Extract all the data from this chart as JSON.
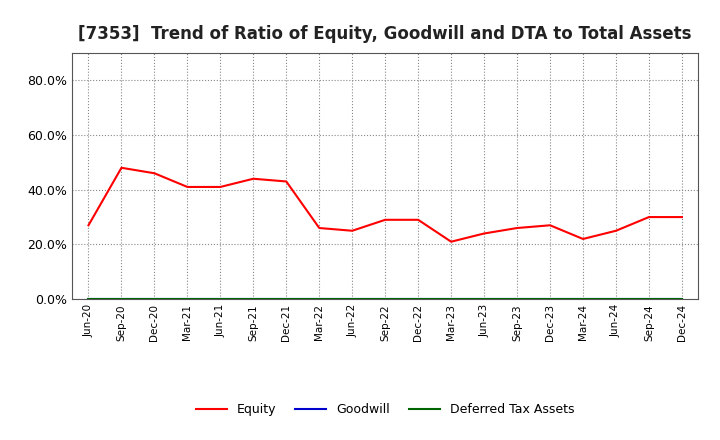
{
  "title": "[7353]  Trend of Ratio of Equity, Goodwill and DTA to Total Assets",
  "x_labels": [
    "Jun-20",
    "Sep-20",
    "Dec-20",
    "Mar-21",
    "Jun-21",
    "Sep-21",
    "Dec-21",
    "Mar-22",
    "Jun-22",
    "Sep-22",
    "Dec-22",
    "Mar-23",
    "Jun-23",
    "Sep-23",
    "Dec-23",
    "Mar-24",
    "Jun-24",
    "Sep-24",
    "Dec-24"
  ],
  "equity": [
    0.27,
    0.48,
    0.46,
    0.41,
    0.41,
    0.44,
    0.43,
    0.26,
    0.25,
    0.29,
    0.29,
    0.21,
    0.24,
    0.26,
    0.27,
    0.22,
    0.25,
    0.3,
    0.3
  ],
  "goodwill": [
    0.0,
    0.0,
    0.0,
    0.0,
    0.0,
    0.0,
    0.0,
    0.0,
    0.0,
    0.0,
    0.0,
    0.0,
    0.0,
    0.0,
    0.0,
    0.0,
    0.0,
    0.0,
    0.0
  ],
  "dta": [
    0.0,
    0.0,
    0.0,
    0.0,
    0.0,
    0.0,
    0.0,
    0.0,
    0.0,
    0.0,
    0.0,
    0.0,
    0.0,
    0.0,
    0.0,
    0.0,
    0.0,
    0.0,
    0.0
  ],
  "equity_color": "#FF0000",
  "goodwill_color": "#0000CC",
  "dta_color": "#006600",
  "ylim": [
    0.0,
    0.9
  ],
  "yticks": [
    0.0,
    0.2,
    0.4,
    0.6,
    0.8
  ],
  "grid_color": "#888888",
  "bg_color": "#ffffff",
  "plot_bg_color": "#ffffff",
  "title_fontsize": 12,
  "legend_entries": [
    "Equity",
    "Goodwill",
    "Deferred Tax Assets"
  ]
}
